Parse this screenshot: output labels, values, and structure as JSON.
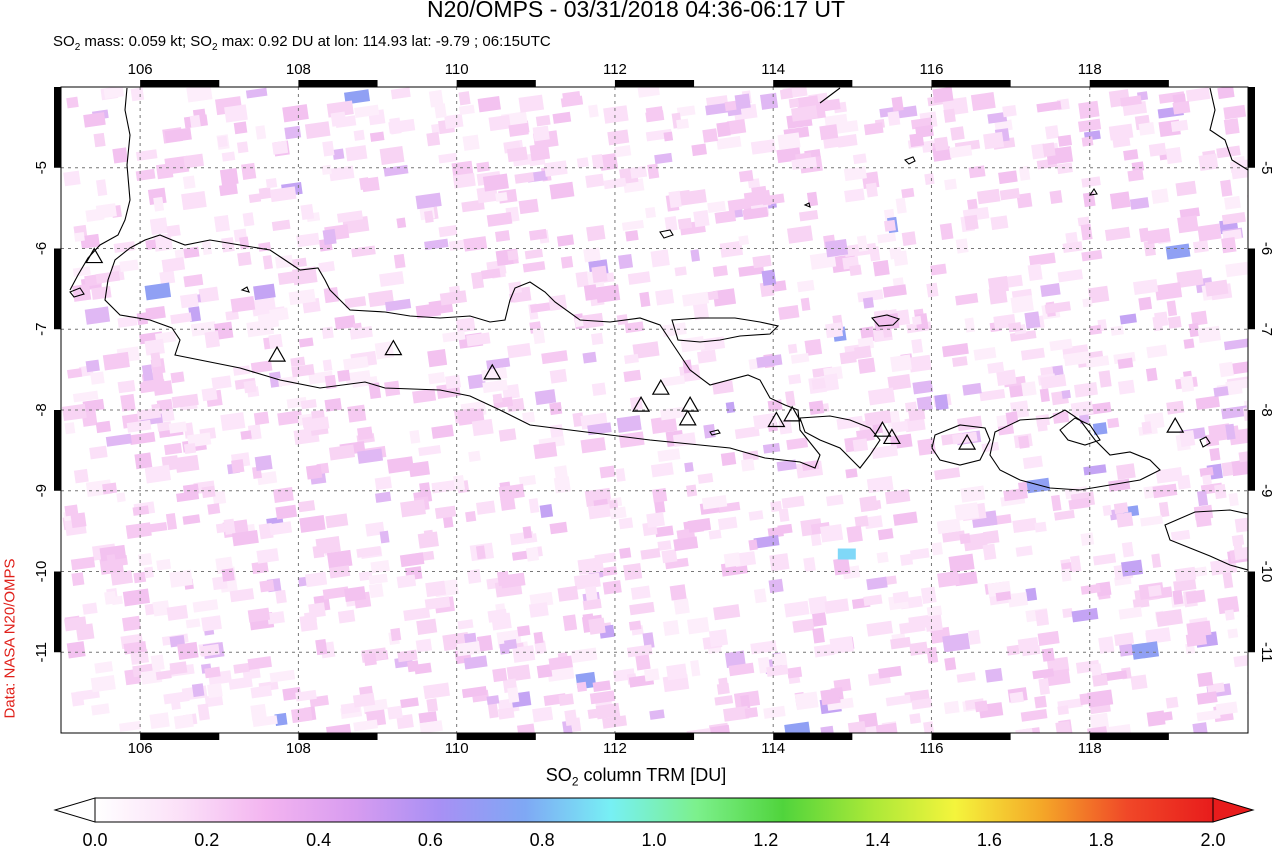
{
  "title": "N20/OMPS - 03/31/2018 04:36-06:17 UT",
  "subtitle": {
    "prefix": "SO",
    "sub": "2",
    "part1": " mass: 0.059 kt; SO",
    "sub2": "2",
    "part2": " max: 0.92 DU at lon: 114.93 lat: -9.79 ; 06:15UTC"
  },
  "credit": "Data: NASA N20/OMPS",
  "axes": {
    "lon_ticks": [
      "106",
      "108",
      "110",
      "112",
      "114",
      "116",
      "118"
    ],
    "lat_ticks": [
      "-5",
      "-6",
      "-7",
      "-8",
      "-9",
      "-10",
      "-11"
    ],
    "lon_range": [
      105,
      120
    ],
    "lat_range": [
      -12,
      -4
    ]
  },
  "colorbar": {
    "title_prefix": "SO",
    "title_sub": "2",
    "title_suffix": " column TRM [DU]",
    "labels": [
      "0.0",
      "0.2",
      "0.4",
      "0.6",
      "0.8",
      "1.0",
      "1.2",
      "1.4",
      "1.6",
      "1.8",
      "2.0"
    ],
    "range": [
      0,
      2
    ],
    "colors": [
      "#ffffff",
      "#fbe0f8",
      "#f3b4f0",
      "#d89cf0",
      "#a890f4",
      "#7fa8f4",
      "#77f0f4",
      "#7cf08c",
      "#50d43c",
      "#a8e838",
      "#f4f43c",
      "#f4a828",
      "#f04828",
      "#e81c1c"
    ]
  },
  "volcano_icon": "triangle-outline-icon",
  "max_marker": {
    "lon": 114.93,
    "lat": -9.79,
    "value": 0.92
  }
}
